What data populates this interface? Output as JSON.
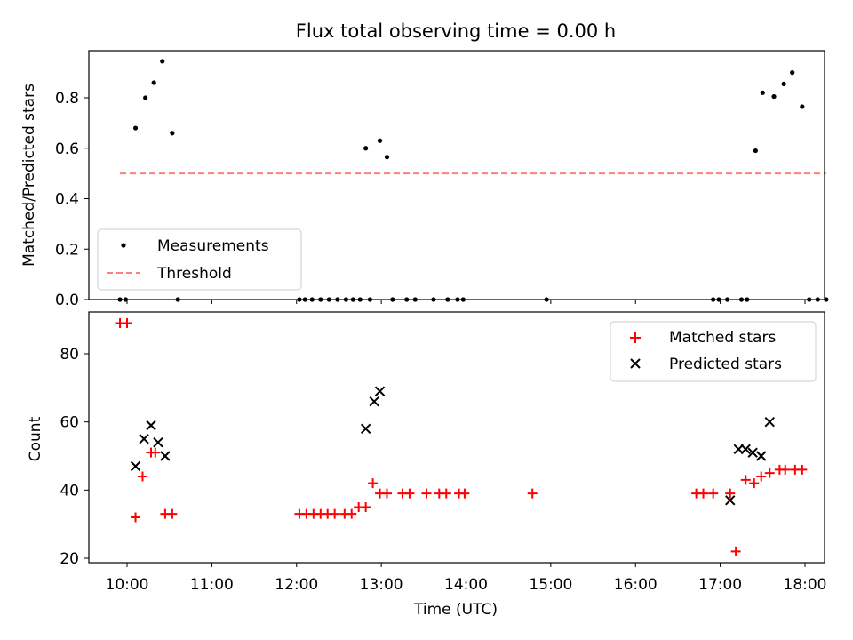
{
  "title": "Flux total observing time = 0.00 h",
  "colors": {
    "measurement": "#000000",
    "threshold": "#ff7f7f",
    "matched": "#ff0000",
    "predicted": "#000000"
  },
  "chart_data": [
    {
      "type": "scatter",
      "ylabel": "Matched/Predicted stars",
      "ylim": [
        0,
        0.99
      ],
      "xlim": [
        "09:35",
        "18:10"
      ],
      "yticks": [
        "0.0",
        "0.2",
        "0.4",
        "0.6",
        "0.8"
      ],
      "legend": {
        "placement": "lower-left",
        "entries": [
          "Measurements",
          "Threshold"
        ]
      },
      "series": [
        {
          "name": "Measurements",
          "points": [
            [
              "09:55",
              0.0
            ],
            [
              "09:59",
              0.0
            ],
            [
              "10:06",
              0.68
            ],
            [
              "10:13",
              0.8
            ],
            [
              "10:19",
              0.86
            ],
            [
              "10:25",
              0.945
            ],
            [
              "10:32",
              0.66
            ],
            [
              "10:36",
              0.0
            ],
            [
              "12:02",
              0.0
            ],
            [
              "12:06",
              0.0
            ],
            [
              "12:11",
              0.0
            ],
            [
              "12:17",
              0.0
            ],
            [
              "12:23",
              0.0
            ],
            [
              "12:29",
              0.0
            ],
            [
              "12:35",
              0.0
            ],
            [
              "12:40",
              0.0
            ],
            [
              "12:45",
              0.0
            ],
            [
              "12:49",
              0.6
            ],
            [
              "12:52",
              0.0
            ],
            [
              "12:59",
              0.63
            ],
            [
              "13:04",
              0.565
            ],
            [
              "13:08",
              0.0
            ],
            [
              "13:18",
              0.0
            ],
            [
              "13:24",
              0.0
            ],
            [
              "13:37",
              0.0
            ],
            [
              "13:47",
              0.0
            ],
            [
              "13:54",
              0.0
            ],
            [
              "13:58",
              0.0
            ],
            [
              "14:57",
              0.0
            ],
            [
              "16:55",
              0.0
            ],
            [
              "16:59",
              0.0
            ],
            [
              "17:05",
              0.0
            ],
            [
              "17:15",
              0.0
            ],
            [
              "17:19",
              0.0
            ],
            [
              "17:25",
              0.59
            ],
            [
              "17:30",
              0.82
            ],
            [
              "17:38",
              0.805
            ],
            [
              "17:45",
              0.855
            ],
            [
              "17:51",
              0.9
            ],
            [
              "17:58",
              0.765
            ],
            [
              "18:03",
              0.0
            ],
            [
              "18:09",
              0.0
            ],
            [
              "18:15",
              0.0
            ]
          ]
        },
        {
          "name": "Threshold",
          "x": [
            "09:55",
            "18:15"
          ],
          "y": [
            0.5,
            0.5
          ]
        }
      ]
    },
    {
      "type": "scatter",
      "ylabel": "Count",
      "xlabel": "Time (UTC)",
      "ylim": [
        19,
        93
      ],
      "xlim": [
        "09:35",
        "18:10"
      ],
      "yticks": [
        "20",
        "40",
        "60",
        "80"
      ],
      "xticks": [
        "10:00",
        "11:00",
        "12:00",
        "13:00",
        "14:00",
        "15:00",
        "16:00",
        "17:00",
        "18:00"
      ],
      "legend": {
        "placement": "top-right",
        "entries": [
          "Matched stars",
          "Predicted stars"
        ]
      },
      "series": [
        {
          "name": "Matched stars",
          "points": [
            [
              "09:55",
              89
            ],
            [
              "10:00",
              89
            ],
            [
              "10:06",
              32
            ],
            [
              "10:11",
              44
            ],
            [
              "10:17",
              51
            ],
            [
              "10:20",
              51
            ],
            [
              "10:27",
              33
            ],
            [
              "10:32",
              33
            ],
            [
              "12:02",
              33
            ],
            [
              "12:07",
              33
            ],
            [
              "12:12",
              33
            ],
            [
              "12:17",
              33
            ],
            [
              "12:22",
              33
            ],
            [
              "12:27",
              33
            ],
            [
              "12:34",
              33
            ],
            [
              "12:39",
              33
            ],
            [
              "12:44",
              35
            ],
            [
              "12:49",
              35
            ],
            [
              "12:54",
              42
            ],
            [
              "12:59",
              39
            ],
            [
              "13:04",
              39
            ],
            [
              "13:15",
              39
            ],
            [
              "13:20",
              39
            ],
            [
              "13:32",
              39
            ],
            [
              "13:41",
              39
            ],
            [
              "13:46",
              39
            ],
            [
              "13:55",
              39
            ],
            [
              "13:59",
              39
            ],
            [
              "14:47",
              39
            ],
            [
              "16:43",
              39
            ],
            [
              "16:48",
              39
            ],
            [
              "16:55",
              39
            ],
            [
              "17:07",
              39
            ],
            [
              "17:11",
              22
            ],
            [
              "17:18",
              43
            ],
            [
              "17:24",
              42
            ],
            [
              "17:29",
              44
            ],
            [
              "17:35",
              45
            ],
            [
              "17:42",
              46
            ],
            [
              "17:46",
              46
            ],
            [
              "17:53",
              46
            ],
            [
              "17:58",
              46
            ]
          ]
        },
        {
          "name": "Predicted stars",
          "points": [
            [
              "10:06",
              47
            ],
            [
              "10:12",
              55
            ],
            [
              "10:17",
              59
            ],
            [
              "10:22",
              54
            ],
            [
              "10:27",
              50
            ],
            [
              "12:49",
              58
            ],
            [
              "12:55",
              66
            ],
            [
              "12:59",
              69
            ],
            [
              "17:07",
              37
            ],
            [
              "17:13",
              52
            ],
            [
              "17:18",
              52
            ],
            [
              "17:23",
              51
            ],
            [
              "17:29",
              50
            ],
            [
              "17:35",
              60
            ]
          ]
        }
      ]
    }
  ]
}
